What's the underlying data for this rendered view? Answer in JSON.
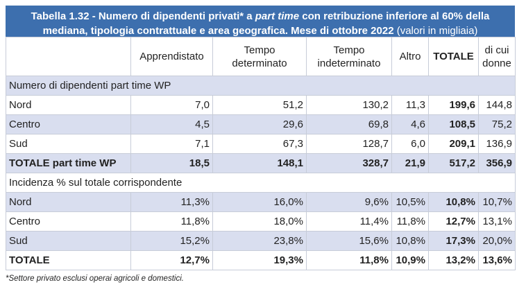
{
  "title": {
    "lead": "Tabella 1.32 - Numero di dipendenti privati* a ",
    "italic": "part time",
    "rest": " con retribuzione inferiore al 60% della mediana, tipologia contrattuale  e area geografica. Mese di ottobre 2022",
    "units": " (valori in migliaia)"
  },
  "columns": [
    "Apprendistato",
    "Tempo determinato",
    "Tempo indeterminato",
    "Altro",
    "TOTALE",
    "di cui donne"
  ],
  "section1": {
    "label": "Numero di dipendenti part time WP",
    "rows": [
      {
        "label": "Nord",
        "values": [
          "7,0",
          "51,2",
          "130,2",
          "11,3",
          "199,6",
          "144,8"
        ]
      },
      {
        "label": "Centro",
        "values": [
          "4,5",
          "29,6",
          "69,8",
          "4,6",
          "108,5",
          "75,2"
        ]
      },
      {
        "label": "Sud",
        "values": [
          "7,1",
          "67,3",
          "128,7",
          "6,0",
          "209,1",
          "136,9"
        ]
      }
    ],
    "total": {
      "label": "TOTALE part time WP",
      "values": [
        "18,5",
        "148,1",
        "328,7",
        "21,9",
        "517,2",
        "356,9"
      ]
    }
  },
  "section2": {
    "label": "Incidenza % sul totale corrispondente",
    "rows": [
      {
        "label": "Nord",
        "values": [
          "11,3%",
          "16,0%",
          "9,6%",
          "10,5%",
          "10,8%",
          "10,7%"
        ]
      },
      {
        "label": "Centro",
        "values": [
          "11,8%",
          "18,0%",
          "11,4%",
          "11,8%",
          "12,7%",
          "13,1%"
        ]
      },
      {
        "label": "Sud",
        "values": [
          "15,2%",
          "23,8%",
          "15,6%",
          "10,8%",
          "17,3%",
          "20,0%"
        ]
      }
    ],
    "total": {
      "label": "TOTALE",
      "values": [
        "12,7%",
        "19,3%",
        "11,8%",
        "10,9%",
        "13,2%",
        "13,6%"
      ]
    }
  },
  "footnote": "*Settore privato esclusi operai agricoli e domestici.",
  "colors": {
    "header": "#3d6fae",
    "shade": "#d9deef",
    "border": "#c7ccd8"
  }
}
